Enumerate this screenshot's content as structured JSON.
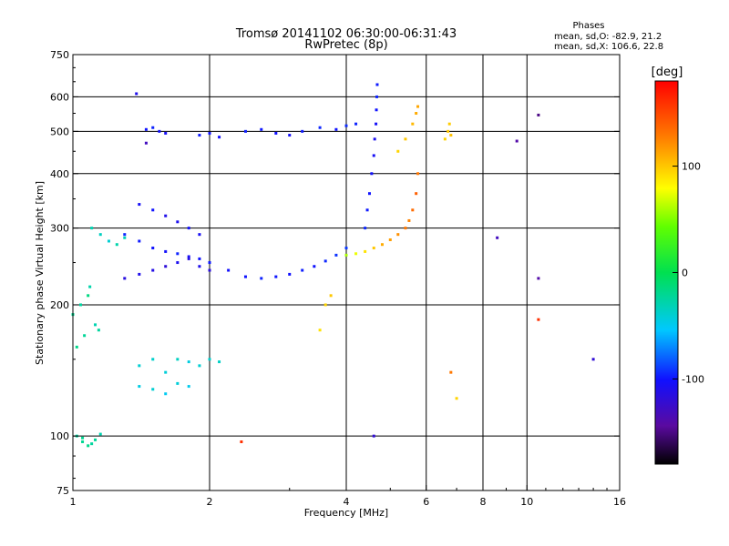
{
  "chart_data": {
    "type": "scatter",
    "title": "Tromsø 20141102 06:30:00-06:31:43",
    "subtitle": "RwPretec (8p)",
    "xlabel": "Frequency [MHz]",
    "ylabel": "Stationary phase Virtual Height [km]",
    "x_scale": "log2",
    "y_scale": "log",
    "xlim": [
      1,
      16
    ],
    "ylim": [
      75,
      750
    ],
    "x_ticks": [
      1,
      2,
      4,
      6,
      8,
      10,
      16
    ],
    "y_ticks": [
      75,
      100,
      200,
      300,
      400,
      500,
      600,
      750
    ],
    "x_gridlines": [
      2,
      4,
      6,
      8,
      10
    ],
    "y_gridlines": [
      100,
      200,
      300,
      400,
      500,
      600
    ],
    "grid": true,
    "legend_position": "top-right",
    "legend_lines": {
      "title": "Phases",
      "line1": "mean, sd,O: -82.9, 21.2",
      "line2": "mean, sd,X: 106.6, 22.8"
    },
    "colorbar": {
      "label": "[deg]",
      "range": [
        -180,
        180
      ],
      "ticks": [
        100,
        0,
        -100
      ]
    },
    "series": [
      {
        "x": [
          1.02,
          1.05,
          1.08,
          1.12,
          1.15,
          1.1,
          1.05
        ],
        "y": [
          100,
          97,
          95,
          98,
          101,
          96,
          99
        ],
        "phase": [
          -25,
          -20,
          -18,
          -22,
          -30,
          -24,
          -20
        ]
      },
      {
        "x": [
          1.0,
          1.04,
          1.08,
          1.12,
          1.06,
          1.02,
          1.09,
          1.14
        ],
        "y": [
          190,
          200,
          210,
          180,
          170,
          160,
          220,
          175
        ],
        "phase": [
          -20,
          -25,
          -15,
          -30,
          -22,
          -18,
          -28,
          -24
        ]
      },
      {
        "x": [
          1.1,
          1.15,
          1.2,
          1.25,
          1.3
        ],
        "y": [
          300,
          290,
          280,
          275,
          285
        ],
        "phase": [
          -30,
          -35,
          -40,
          -28,
          -32
        ]
      },
      {
        "x": [
          1.4,
          1.5,
          1.6,
          1.7,
          1.8,
          1.9,
          2.0,
          2.1
        ],
        "y": [
          145,
          150,
          140,
          150,
          148,
          145,
          150,
          148
        ],
        "phase": [
          -40,
          -38,
          -42,
          -35,
          -44,
          -40,
          -38,
          -36
        ]
      },
      {
        "x": [
          1.4,
          1.5,
          1.6,
          1.7,
          1.8
        ],
        "y": [
          130,
          128,
          125,
          132,
          130
        ],
        "phase": [
          -45,
          -40,
          -50,
          -42,
          -48
        ]
      },
      {
        "x": [
          1.3,
          1.4,
          1.5,
          1.6,
          1.7,
          1.8,
          1.9,
          2.0,
          2.2,
          2.4,
          2.6,
          2.8,
          3.0,
          3.2,
          3.4,
          3.6,
          3.8,
          4.0
        ],
        "y": [
          290,
          280,
          270,
          265,
          262,
          258,
          255,
          250,
          240,
          232,
          230,
          232,
          235,
          240,
          245,
          252,
          260,
          270
        ],
        "phase": [
          -95,
          -98,
          -100,
          -102,
          -96,
          -105,
          -100,
          -98,
          -102,
          -100,
          -96,
          -99,
          -101,
          -97,
          -100,
          -95,
          -92,
          -90
        ]
      },
      {
        "x": [
          1.3,
          1.4,
          1.5,
          1.6,
          1.7,
          1.8,
          1.9,
          2.0
        ],
        "y": [
          230,
          235,
          240,
          245,
          250,
          255,
          245,
          240
        ],
        "phase": [
          -115,
          -110,
          -112,
          -118,
          -108,
          -114,
          -110,
          -116
        ]
      },
      {
        "x": [
          1.4,
          1.5,
          1.6,
          1.7,
          1.8,
          1.9
        ],
        "y": [
          340,
          330,
          320,
          310,
          300,
          290
        ],
        "phase": [
          -105,
          -100,
          -110,
          -108,
          -102,
          -106
        ]
      },
      {
        "x": [
          1.45,
          1.5,
          1.55,
          1.6,
          1.9,
          2.0,
          2.1,
          2.4,
          2.6,
          2.8,
          3.0,
          3.2,
          3.5,
          3.8,
          4.0,
          4.2
        ],
        "y": [
          505,
          510,
          500,
          495,
          490,
          495,
          485,
          500,
          505,
          495,
          490,
          500,
          510,
          505,
          515,
          520
        ],
        "phase": [
          -100,
          -96,
          -102,
          -105,
          -98,
          -100,
          -103,
          -97,
          -99,
          -101,
          -104,
          -98,
          -95,
          -100,
          -94,
          -96
        ]
      },
      {
        "x": [
          4.4,
          4.45,
          4.5,
          4.55,
          4.6,
          4.62,
          4.65,
          4.66,
          4.67,
          4.68
        ],
        "y": [
          300,
          330,
          360,
          400,
          440,
          480,
          520,
          560,
          600,
          640
        ],
        "phase": [
          -95,
          -98,
          -100,
          -102,
          -105,
          -108,
          -104,
          -100,
          -96,
          -98
        ]
      },
      {
        "x": [
          4.0,
          4.2,
          4.4,
          4.6,
          4.8,
          5.0,
          5.2,
          5.4,
          5.5,
          5.6,
          5.7,
          5.75
        ],
        "y": [
          260,
          262,
          265,
          270,
          275,
          282,
          290,
          300,
          312,
          330,
          360,
          400
        ],
        "phase": [
          60,
          75,
          90,
          100,
          110,
          115,
          120,
          130,
          125,
          135,
          140,
          130
        ]
      },
      {
        "x": [
          5.2,
          5.4,
          5.6,
          5.7,
          5.75
        ],
        "y": [
          450,
          480,
          520,
          550,
          570
        ],
        "phase": [
          95,
          100,
          105,
          110,
          112
        ]
      },
      {
        "x": [
          6.6,
          6.7,
          6.75,
          6.8
        ],
        "y": [
          480,
          500,
          520,
          490
        ],
        "phase": [
          95,
          100,
          98,
          102
        ]
      },
      {
        "x": [
          3.5,
          3.6,
          3.7
        ],
        "y": [
          175,
          200,
          210
        ],
        "phase": [
          90,
          95,
          100
        ]
      },
      {
        "x": [
          1.38,
          1.45,
          2.35,
          4.6,
          6.8,
          7.0,
          8.6,
          9.5,
          10.6,
          10.6,
          14.0,
          10.6
        ],
        "y": [
          610,
          470,
          97,
          100,
          140,
          122,
          285,
          475,
          185,
          545,
          150,
          230
        ],
        "phase": [
          -110,
          -130,
          160,
          -120,
          130,
          95,
          -130,
          -140,
          160,
          -150,
          -120,
          -140
        ]
      }
    ]
  }
}
